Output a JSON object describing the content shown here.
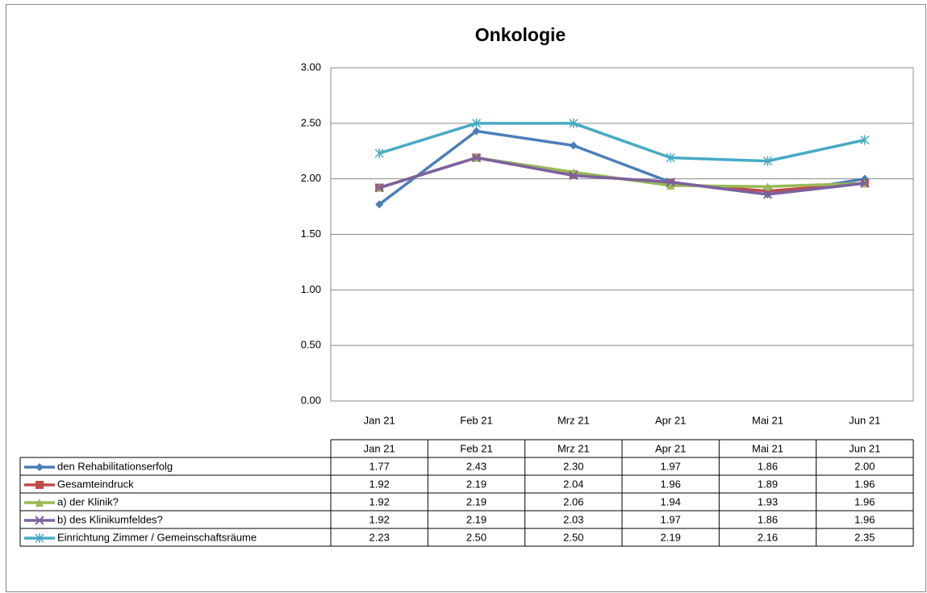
{
  "chart_data": {
    "type": "line",
    "title": "Onkologie",
    "categories": [
      "Jan 21",
      "Feb 21",
      "Mrz 21",
      "Apr 21",
      "Mai 21",
      "Jun 21"
    ],
    "ylim": [
      0,
      3
    ],
    "yticks": [
      {
        "value": 0,
        "label": "0.00"
      },
      {
        "value": 0.5,
        "label": "0.50"
      },
      {
        "value": 1,
        "label": "1.00"
      },
      {
        "value": 1.5,
        "label": "1.50"
      },
      {
        "value": 2,
        "label": "2.00"
      },
      {
        "value": 2.5,
        "label": "2.50"
      },
      {
        "value": 3,
        "label": "3.00"
      }
    ],
    "grid": true,
    "series": [
      {
        "name": "den Rehabilitationserfolg",
        "color": "#4a7ebb",
        "marker": "diamond",
        "values": [
          1.77,
          2.43,
          2.3,
          1.97,
          1.86,
          2
        ],
        "value_labels": [
          "1.77",
          "2.43",
          "2.30",
          "1.97",
          "1.86",
          "2.00"
        ]
      },
      {
        "name": "Gesamteindruck",
        "color": "#be4b48",
        "marker": "square",
        "values": [
          1.92,
          2.19,
          2.04,
          1.96,
          1.89,
          1.96
        ],
        "value_labels": [
          "1.92",
          "2.19",
          "2.04",
          "1.96",
          "1.89",
          "1.96"
        ]
      },
      {
        "name": "a) der Klinik?",
        "color": "#98b954",
        "marker": "triangle",
        "values": [
          1.92,
          2.19,
          2.06,
          1.94,
          1.93,
          1.96
        ],
        "value_labels": [
          "1.92",
          "2.19",
          "2.06",
          "1.94",
          "1.93",
          "1.96"
        ]
      },
      {
        "name": "b) des Klinikumfeldes?",
        "color": "#7d60a0",
        "marker": "x",
        "values": [
          1.92,
          2.19,
          2.03,
          1.97,
          1.86,
          1.96
        ],
        "value_labels": [
          "1.92",
          "2.19",
          "2.03",
          "1.97",
          "1.86",
          "1.96"
        ]
      },
      {
        "name": "Einrichtung Zimmer / Gemeinschaftsräume",
        "color": "#46aac5",
        "marker": "star",
        "values": [
          2.23,
          2.5,
          2.5,
          2.19,
          2.16,
          2.35
        ],
        "value_labels": [
          "2.23",
          "2.50",
          "2.50",
          "2.19",
          "2.16",
          "2.35"
        ]
      }
    ]
  }
}
